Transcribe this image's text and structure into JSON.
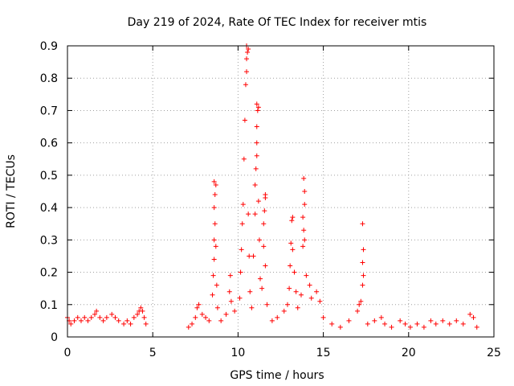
{
  "chart_data": {
    "type": "scatter",
    "title": "Day 219 of 2024, Rate Of TEC Index for receiver mtis",
    "xlabel": "GPS time / hours",
    "ylabel": "ROTI / TECUs",
    "xlim": [
      0,
      25
    ],
    "ylim": [
      0,
      0.9
    ],
    "x_ticks": [
      "0",
      "5",
      "10",
      "15",
      "20",
      "25"
    ],
    "y_ticks": [
      "0",
      "0.1",
      "0.2",
      "0.3",
      "0.4",
      "0.5",
      "0.6",
      "0.7",
      "0.8",
      "0.9"
    ],
    "grid": true,
    "marker": "+",
    "color": "#ff0000",
    "series": [
      {
        "points": [
          [
            0.0,
            0.06
          ],
          [
            0.1,
            0.05
          ],
          [
            0.2,
            0.04
          ],
          [
            0.4,
            0.05
          ],
          [
            0.6,
            0.06
          ],
          [
            0.8,
            0.05
          ],
          [
            1.0,
            0.06
          ],
          [
            1.2,
            0.05
          ],
          [
            1.4,
            0.06
          ],
          [
            1.6,
            0.07
          ],
          [
            1.7,
            0.08
          ],
          [
            1.9,
            0.06
          ],
          [
            2.1,
            0.05
          ],
          [
            2.3,
            0.06
          ],
          [
            2.6,
            0.07
          ],
          [
            2.8,
            0.06
          ],
          [
            3.0,
            0.05
          ],
          [
            3.3,
            0.04
          ],
          [
            3.5,
            0.05
          ],
          [
            3.7,
            0.04
          ],
          [
            3.9,
            0.06
          ],
          [
            4.1,
            0.07
          ],
          [
            4.2,
            0.08
          ],
          [
            4.3,
            0.09
          ],
          [
            4.4,
            0.08
          ],
          [
            4.5,
            0.06
          ],
          [
            4.6,
            0.04
          ],
          [
            7.1,
            0.03
          ],
          [
            7.3,
            0.04
          ],
          [
            7.5,
            0.06
          ],
          [
            7.6,
            0.09
          ],
          [
            7.7,
            0.1
          ],
          [
            7.9,
            0.07
          ],
          [
            8.1,
            0.06
          ],
          [
            8.3,
            0.05
          ],
          [
            8.5,
            0.13
          ],
          [
            8.55,
            0.19
          ],
          [
            8.6,
            0.24
          ],
          [
            8.6,
            0.3
          ],
          [
            8.65,
            0.35
          ],
          [
            8.6,
            0.4
          ],
          [
            8.65,
            0.44
          ],
          [
            8.7,
            0.47
          ],
          [
            8.6,
            0.48
          ],
          [
            8.7,
            0.28
          ],
          [
            8.75,
            0.16
          ],
          [
            8.8,
            0.09
          ],
          [
            9.0,
            0.05
          ],
          [
            9.3,
            0.07
          ],
          [
            9.5,
            0.14
          ],
          [
            9.55,
            0.19
          ],
          [
            9.6,
            0.11
          ],
          [
            9.8,
            0.08
          ],
          [
            10.1,
            0.12
          ],
          [
            10.15,
            0.2
          ],
          [
            10.2,
            0.27
          ],
          [
            10.25,
            0.35
          ],
          [
            10.3,
            0.41
          ],
          [
            10.35,
            0.55
          ],
          [
            10.4,
            0.67
          ],
          [
            10.45,
            0.78
          ],
          [
            10.5,
            0.82
          ],
          [
            10.5,
            0.86
          ],
          [
            10.55,
            0.88
          ],
          [
            10.5,
            0.9
          ],
          [
            10.6,
            0.89
          ],
          [
            10.6,
            0.38
          ],
          [
            10.65,
            0.25
          ],
          [
            10.7,
            0.14
          ],
          [
            10.8,
            0.09
          ],
          [
            10.9,
            0.25
          ],
          [
            11.0,
            0.38
          ],
          [
            11.0,
            0.47
          ],
          [
            11.05,
            0.52
          ],
          [
            11.1,
            0.56
          ],
          [
            11.1,
            0.6
          ],
          [
            11.1,
            0.65
          ],
          [
            11.15,
            0.7
          ],
          [
            11.1,
            0.72
          ],
          [
            11.2,
            0.71
          ],
          [
            11.2,
            0.42
          ],
          [
            11.25,
            0.3
          ],
          [
            11.3,
            0.18
          ],
          [
            11.4,
            0.15
          ],
          [
            11.5,
            0.28
          ],
          [
            11.5,
            0.35
          ],
          [
            11.55,
            0.39
          ],
          [
            11.6,
            0.43
          ],
          [
            11.6,
            0.44
          ],
          [
            11.6,
            0.22
          ],
          [
            11.7,
            0.1
          ],
          [
            12.0,
            0.05
          ],
          [
            12.3,
            0.06
          ],
          [
            12.7,
            0.08
          ],
          [
            12.9,
            0.1
          ],
          [
            13.0,
            0.15
          ],
          [
            13.05,
            0.22
          ],
          [
            13.1,
            0.29
          ],
          [
            13.15,
            0.36
          ],
          [
            13.2,
            0.37
          ],
          [
            13.2,
            0.27
          ],
          [
            13.3,
            0.2
          ],
          [
            13.4,
            0.14
          ],
          [
            13.5,
            0.09
          ],
          [
            13.7,
            0.13
          ],
          [
            13.8,
            0.28
          ],
          [
            13.85,
            0.33
          ],
          [
            13.8,
            0.37
          ],
          [
            13.9,
            0.41
          ],
          [
            13.9,
            0.45
          ],
          [
            13.85,
            0.49
          ],
          [
            13.9,
            0.3
          ],
          [
            14.0,
            0.19
          ],
          [
            14.2,
            0.16
          ],
          [
            14.3,
            0.12
          ],
          [
            14.6,
            0.14
          ],
          [
            14.8,
            0.11
          ],
          [
            15.0,
            0.06
          ],
          [
            15.5,
            0.04
          ],
          [
            16.0,
            0.03
          ],
          [
            16.5,
            0.05
          ],
          [
            17.0,
            0.08
          ],
          [
            17.1,
            0.1
          ],
          [
            17.2,
            0.11
          ],
          [
            17.3,
            0.16
          ],
          [
            17.35,
            0.19
          ],
          [
            17.3,
            0.23
          ],
          [
            17.35,
            0.27
          ],
          [
            17.3,
            0.35
          ],
          [
            17.6,
            0.04
          ],
          [
            18.0,
            0.05
          ],
          [
            18.4,
            0.06
          ],
          [
            18.6,
            0.04
          ],
          [
            19.0,
            0.03
          ],
          [
            19.5,
            0.05
          ],
          [
            19.8,
            0.04
          ],
          [
            20.1,
            0.03
          ],
          [
            20.5,
            0.04
          ],
          [
            20.9,
            0.03
          ],
          [
            21.3,
            0.05
          ],
          [
            21.6,
            0.04
          ],
          [
            22.0,
            0.05
          ],
          [
            22.4,
            0.04
          ],
          [
            22.8,
            0.05
          ],
          [
            23.2,
            0.04
          ],
          [
            23.6,
            0.07
          ],
          [
            23.8,
            0.06
          ],
          [
            24.0,
            0.03
          ]
        ]
      }
    ]
  }
}
